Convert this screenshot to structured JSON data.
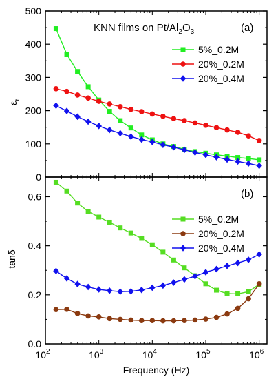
{
  "figure": {
    "title_main": "KNN films on Pt/Al",
    "title_sub1": "2",
    "title_mid": "O",
    "title_sub2": "3",
    "xlabel": "Frequency (Hz)",
    "x_tick_base": "10",
    "x_tick_exponents": [
      "2",
      "3",
      "4",
      "5",
      "6"
    ]
  },
  "chart_data": [
    {
      "type": "line",
      "panel_label": "(a)",
      "ylabel_main": "ε",
      "ylabel_sub": "r",
      "xscale": "log",
      "xlim": [
        100,
        1400000
      ],
      "ylim": [
        0,
        500
      ],
      "yticks": [
        0,
        100,
        200,
        300,
        400,
        500
      ],
      "legend_position": "right",
      "series": [
        {
          "name": "5%_0.2M",
          "color": "#22ee22",
          "marker": "square",
          "x": [
            158,
            251,
            398,
            631,
            1000,
            1585,
            2512,
            3981,
            6310,
            10000,
            15849,
            25119,
            39811,
            63096,
            100000,
            158489,
            251189,
            398107,
            630957,
            1000000
          ],
          "y": [
            447,
            370,
            318,
            272,
            232,
            198,
            170,
            148,
            127,
            112,
            100,
            92,
            84,
            77,
            72,
            67,
            63,
            59,
            56,
            52
          ]
        },
        {
          "name": "20%_0.2M",
          "color": "#ee1111",
          "marker": "circle",
          "x": [
            158,
            251,
            398,
            631,
            1000,
            1585,
            2512,
            3981,
            6310,
            10000,
            15849,
            25119,
            39811,
            63096,
            100000,
            158489,
            251189,
            398107,
            630957,
            1000000
          ],
          "y": [
            266,
            258,
            247,
            238,
            228,
            220,
            212,
            204,
            197,
            190,
            183,
            176,
            170,
            163,
            156,
            149,
            142,
            135,
            124,
            110
          ]
        },
        {
          "name": "20%_0.4M",
          "color": "#1111ee",
          "marker": "diamond",
          "x": [
            158,
            251,
            398,
            631,
            1000,
            1585,
            2512,
            3981,
            6310,
            10000,
            15849,
            25119,
            39811,
            63096,
            100000,
            158489,
            251189,
            398107,
            630957,
            1000000
          ],
          "y": [
            215,
            199,
            182,
            167,
            154,
            142,
            132,
            122,
            113,
            106,
            97,
            90,
            82,
            74,
            67,
            60,
            53,
            47,
            41,
            34
          ]
        }
      ]
    },
    {
      "type": "line",
      "panel_label": "(b)",
      "ylabel": "tanδ",
      "xscale": "log",
      "xlim": [
        100,
        1400000
      ],
      "ylim": [
        0,
        0.68
      ],
      "yticks": [
        0.0,
        0.2,
        0.4,
        0.6
      ],
      "legend_position": "right",
      "series": [
        {
          "name": "5%_0.2M",
          "color": "#55dd22",
          "marker": "square",
          "x": [
            158,
            251,
            398,
            631,
            1000,
            1585,
            2512,
            3981,
            6310,
            10000,
            15849,
            25119,
            39811,
            63096,
            100000,
            158489,
            251189,
            398107,
            630957,
            1000000
          ],
          "y": [
            0.659,
            0.623,
            0.574,
            0.54,
            0.517,
            0.496,
            0.473,
            0.452,
            0.43,
            0.404,
            0.374,
            0.342,
            0.31,
            0.278,
            0.245,
            0.219,
            0.205,
            0.204,
            0.213,
            0.243
          ]
        },
        {
          "name": "20%_0.2M",
          "color": "#8b3a10",
          "marker": "circle",
          "x": [
            158,
            251,
            398,
            631,
            1000,
            1585,
            2512,
            3981,
            6310,
            10000,
            15849,
            25119,
            39811,
            63096,
            100000,
            158489,
            251189,
            398107,
            630957,
            1000000
          ],
          "y": [
            0.14,
            0.141,
            0.124,
            0.114,
            0.11,
            0.103,
            0.1,
            0.097,
            0.095,
            0.095,
            0.094,
            0.094,
            0.095,
            0.097,
            0.101,
            0.108,
            0.122,
            0.145,
            0.184,
            0.245
          ]
        },
        {
          "name": "20%_0.4M",
          "color": "#1111ee",
          "marker": "diamond",
          "x": [
            158,
            251,
            398,
            631,
            1000,
            1585,
            2512,
            3981,
            6310,
            10000,
            15849,
            25119,
            39811,
            63096,
            100000,
            158489,
            251189,
            398107,
            630957,
            1000000
          ],
          "y": [
            0.297,
            0.267,
            0.244,
            0.232,
            0.222,
            0.217,
            0.213,
            0.214,
            0.22,
            0.229,
            0.238,
            0.25,
            0.263,
            0.276,
            0.292,
            0.305,
            0.318,
            0.33,
            0.343,
            0.365
          ]
        }
      ]
    }
  ]
}
